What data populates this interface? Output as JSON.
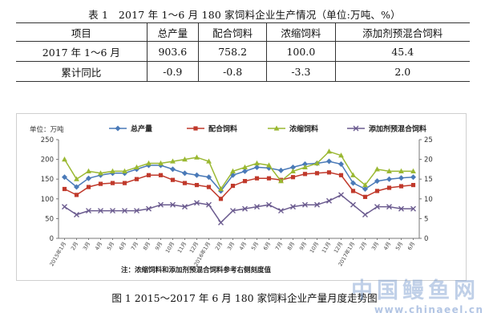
{
  "table": {
    "title": "表 1　2017 年 1～6 月 180 家饲料企业生产情况（单位:万吨、%）",
    "headers": [
      "项目",
      "总产量",
      "配合饲料",
      "浓缩饲料",
      "添加剂预混合饲料"
    ],
    "rows": [
      [
        "2017 年 1～6 月",
        "903.6",
        "758.2",
        "100.0",
        "45.4"
      ],
      [
        "累计同比",
        "-0.9",
        "-0.8",
        "-3.3",
        "2.0"
      ]
    ]
  },
  "figure_caption": "图 1 2015～2017 年 6 月 180 家饲料企业产量月度走势图",
  "watermark": {
    "cn": "中国鳗鱼网",
    "url": "www.chinaeel.cn"
  },
  "chart_data": {
    "type": "line",
    "unit_label": "单位：万吨",
    "note": "注：浓缩饲料和添加剂预混合饲料参考右侧刻度值",
    "legend_position": "top",
    "x": [
      "2015年1月",
      "2月",
      "3月",
      "4月",
      "5月",
      "6月",
      "7月",
      "8月",
      "9月",
      "10月",
      "11月",
      "12月",
      "2016年1月",
      "2月",
      "3月",
      "4月",
      "5月",
      "6月",
      "7月",
      "8月",
      "9月",
      "10月",
      "11月",
      "12月",
      "2017年1月",
      "2月",
      "3月",
      "4月",
      "5月",
      "6月"
    ],
    "y_left": {
      "range": [
        0,
        250
      ],
      "ticks": [
        0,
        50,
        100,
        150,
        200,
        250
      ]
    },
    "y_right": {
      "range": [
        0,
        25
      ],
      "ticks": [
        0,
        5,
        10,
        15,
        20,
        25
      ]
    },
    "grid": false,
    "series": [
      {
        "name": "总产量",
        "axis": "left",
        "color": "#4a7ab8",
        "marker": "diamond",
        "values": [
          155,
          130,
          152,
          160,
          165,
          165,
          175,
          185,
          185,
          175,
          165,
          160,
          155,
          120,
          160,
          170,
          180,
          178,
          172,
          180,
          188,
          190,
          195,
          188,
          140,
          125,
          145,
          150,
          153,
          155
        ]
      },
      {
        "name": "配合饲料",
        "axis": "left",
        "color": "#c0392b",
        "marker": "square",
        "values": [
          125,
          110,
          130,
          138,
          140,
          140,
          150,
          160,
          160,
          148,
          140,
          135,
          130,
          100,
          133,
          145,
          152,
          152,
          148,
          155,
          163,
          165,
          167,
          160,
          120,
          105,
          120,
          128,
          132,
          135
        ]
      },
      {
        "name": "浓缩饲料",
        "axis": "right",
        "color": "#9ab832",
        "marker": "triangle",
        "values": [
          20,
          15,
          17,
          16.5,
          17,
          17,
          18,
          19,
          19,
          19.5,
          20,
          20.5,
          19.5,
          12.5,
          17,
          18,
          19,
          18.5,
          14.5,
          17,
          18,
          19,
          22,
          21,
          16,
          13.5,
          17.5,
          17,
          17,
          17
        ]
      },
      {
        "name": "添加剂预混合饲料",
        "axis": "right",
        "color": "#6b5b8f",
        "marker": "cross",
        "values": [
          8,
          6,
          7,
          7,
          7,
          7,
          7,
          7.5,
          8.5,
          8.5,
          8,
          9,
          8.5,
          4,
          7,
          7.5,
          8,
          8.5,
          7,
          8,
          8.5,
          8.5,
          9.5,
          11,
          8.5,
          6,
          8,
          8,
          7.5,
          7.5
        ]
      }
    ]
  }
}
